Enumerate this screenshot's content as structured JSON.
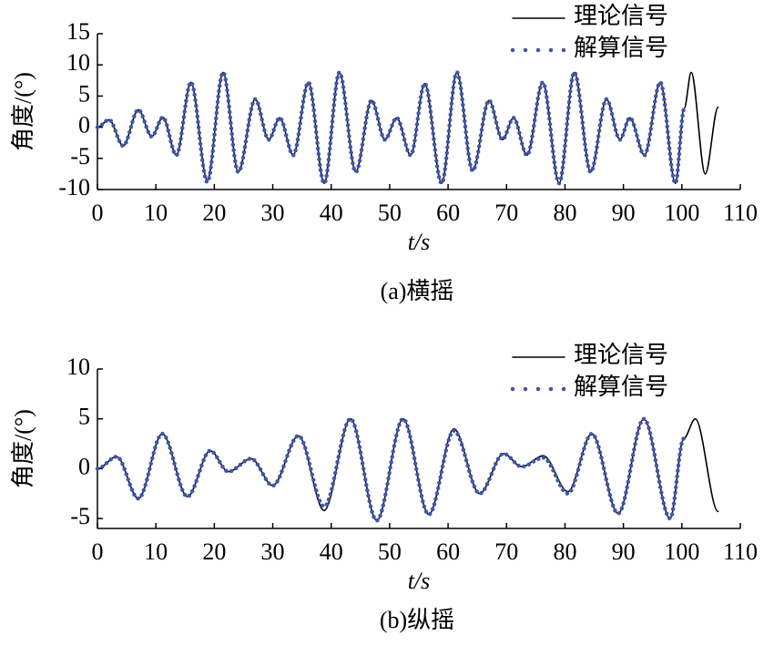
{
  "chart_data": [
    {
      "type": "line",
      "caption": "(a)横摇",
      "xlabel": "t/s",
      "ylabel": "角度/(°)",
      "xlim": [
        0,
        110
      ],
      "xticks": [
        0,
        10,
        20,
        30,
        40,
        50,
        60,
        70,
        80,
        90,
        100,
        110
      ],
      "ylim": [
        -10,
        15
      ],
      "yticks": [
        -10,
        -5,
        0,
        5,
        10,
        15
      ],
      "x": [
        0,
        2,
        4.4,
        7,
        9.3,
        11.2,
        13.5,
        16,
        18.8,
        21.5,
        24.1,
        27,
        29.3,
        31.2,
        33.5,
        36.1,
        38.8,
        41.4,
        44.2,
        46.9,
        49.2,
        51.2,
        53.6,
        56,
        58.9,
        61.5,
        64.2,
        67,
        69.3,
        71.2,
        73.5,
        76.2,
        79,
        81.6,
        84.4,
        87.1,
        89.4,
        91.1,
        93.6,
        96.3,
        98.9,
        100.4,
        101.6,
        104,
        106.2
      ],
      "series": [
        {
          "name": "理论信号",
          "color": "#000000",
          "style": "solid",
          "values": [
            0,
            1.2,
            -3,
            2.8,
            -1.5,
            1.6,
            -4.5,
            7.2,
            -8.5,
            8.8,
            -7.2,
            4.5,
            -2,
            1.5,
            -4.5,
            7.2,
            -9,
            8.8,
            -7.2,
            4.3,
            -2,
            1.5,
            -4.5,
            7,
            -9,
            8.8,
            -7,
            4.3,
            -2,
            1.5,
            -4.5,
            7.2,
            -9,
            8.8,
            -7.2,
            4.5,
            -2,
            1.5,
            -4.5,
            7.2,
            -9,
            3,
            8.8,
            -7.5,
            3.2
          ]
        },
        {
          "name": "解算信号",
          "color": "#3f56a8",
          "style": "dotted",
          "values": [
            0,
            1.2,
            -3,
            2.8,
            -1.5,
            1.6,
            -4.5,
            7.2,
            -8.8,
            8.8,
            -7.2,
            4.5,
            -2,
            1.5,
            -4.5,
            7.2,
            -9,
            8.8,
            -7.2,
            4.3,
            -2,
            1.5,
            -4.5,
            7,
            -9,
            8.8,
            -7,
            4.3,
            -2,
            1.5,
            -4.5,
            7.2,
            -9,
            8.8,
            -7.2,
            4.5,
            -2,
            1.5,
            -4.5,
            7.2,
            -9,
            3,
            null,
            null,
            null
          ]
        }
      ]
    },
    {
      "type": "line",
      "caption": "(b)纵摇",
      "xlabel": "t/s",
      "ylabel": "角度/(°)",
      "xlim": [
        0,
        110
      ],
      "xticks": [
        0,
        10,
        20,
        30,
        40,
        50,
        60,
        70,
        80,
        90,
        100,
        110
      ],
      "ylim": [
        -6,
        10
      ],
      "yticks": [
        -5,
        0,
        5,
        10
      ],
      "x": [
        0,
        3.3,
        7,
        11.1,
        15.4,
        19.3,
        22.4,
        26.3,
        30,
        34.4,
        38.8,
        43.3,
        47.8,
        52.3,
        56.7,
        61,
        65.4,
        69.5,
        72.6,
        76.3,
        80.5,
        84.6,
        89.1,
        93.5,
        98,
        100.3,
        102.3,
        106.2
      ],
      "series": [
        {
          "name": "理论信号",
          "color": "#000000",
          "style": "solid",
          "values": [
            0,
            1.2,
            -3,
            3.5,
            -2.8,
            1.8,
            -0.3,
            1,
            -1.7,
            3.3,
            -4.2,
            5,
            -5.2,
            5,
            -4.6,
            4,
            -2.5,
            1.5,
            0.2,
            1.3,
            -2.3,
            3.5,
            -4.5,
            5,
            -5,
            3,
            5,
            -4.3
          ]
        },
        {
          "name": "解算信号",
          "color": "#3f56a8",
          "style": "dotted",
          "values": [
            0,
            1.2,
            -3,
            3.5,
            -2.8,
            1.8,
            -0.3,
            1,
            -1.7,
            3.3,
            -3.8,
            5,
            -5.2,
            5,
            -4.6,
            3.8,
            -2.5,
            1.5,
            0.2,
            1.1,
            -2.5,
            3.5,
            -4.5,
            5,
            -5,
            3,
            null,
            null
          ]
        }
      ]
    }
  ]
}
